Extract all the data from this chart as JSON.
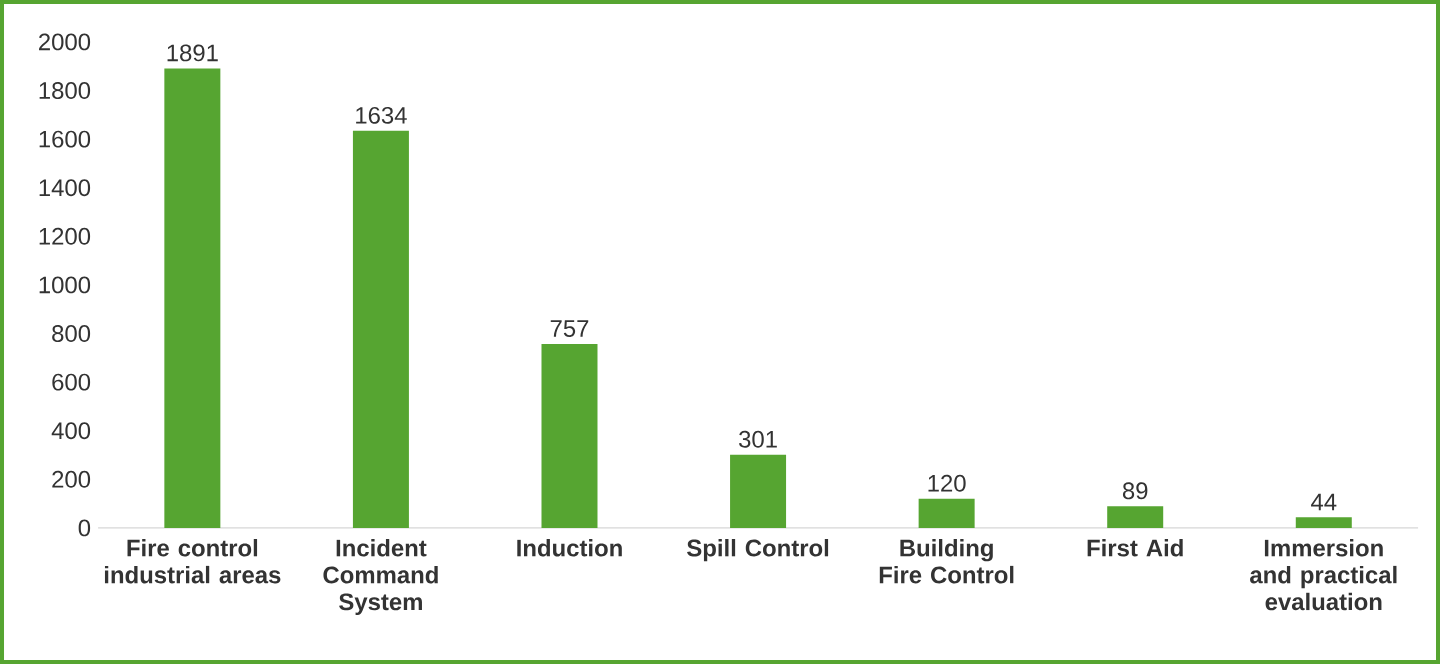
{
  "chart_data": {
    "type": "bar",
    "categories": [
      "Fire control industrial areas",
      "Incident Command System",
      "Induction",
      "Spill Control",
      "Building Fire Control",
      "First Aid",
      "Immersion and practical evaluation"
    ],
    "values": [
      1891,
      1634,
      757,
      301,
      120,
      89,
      44
    ],
    "color": "#56a531",
    "ylim": [
      0,
      2000
    ],
    "yticks": [
      0,
      200,
      400,
      600,
      800,
      1000,
      1200,
      1400,
      1600,
      1800,
      2000
    ],
    "data_labels": true,
    "grid": false
  }
}
